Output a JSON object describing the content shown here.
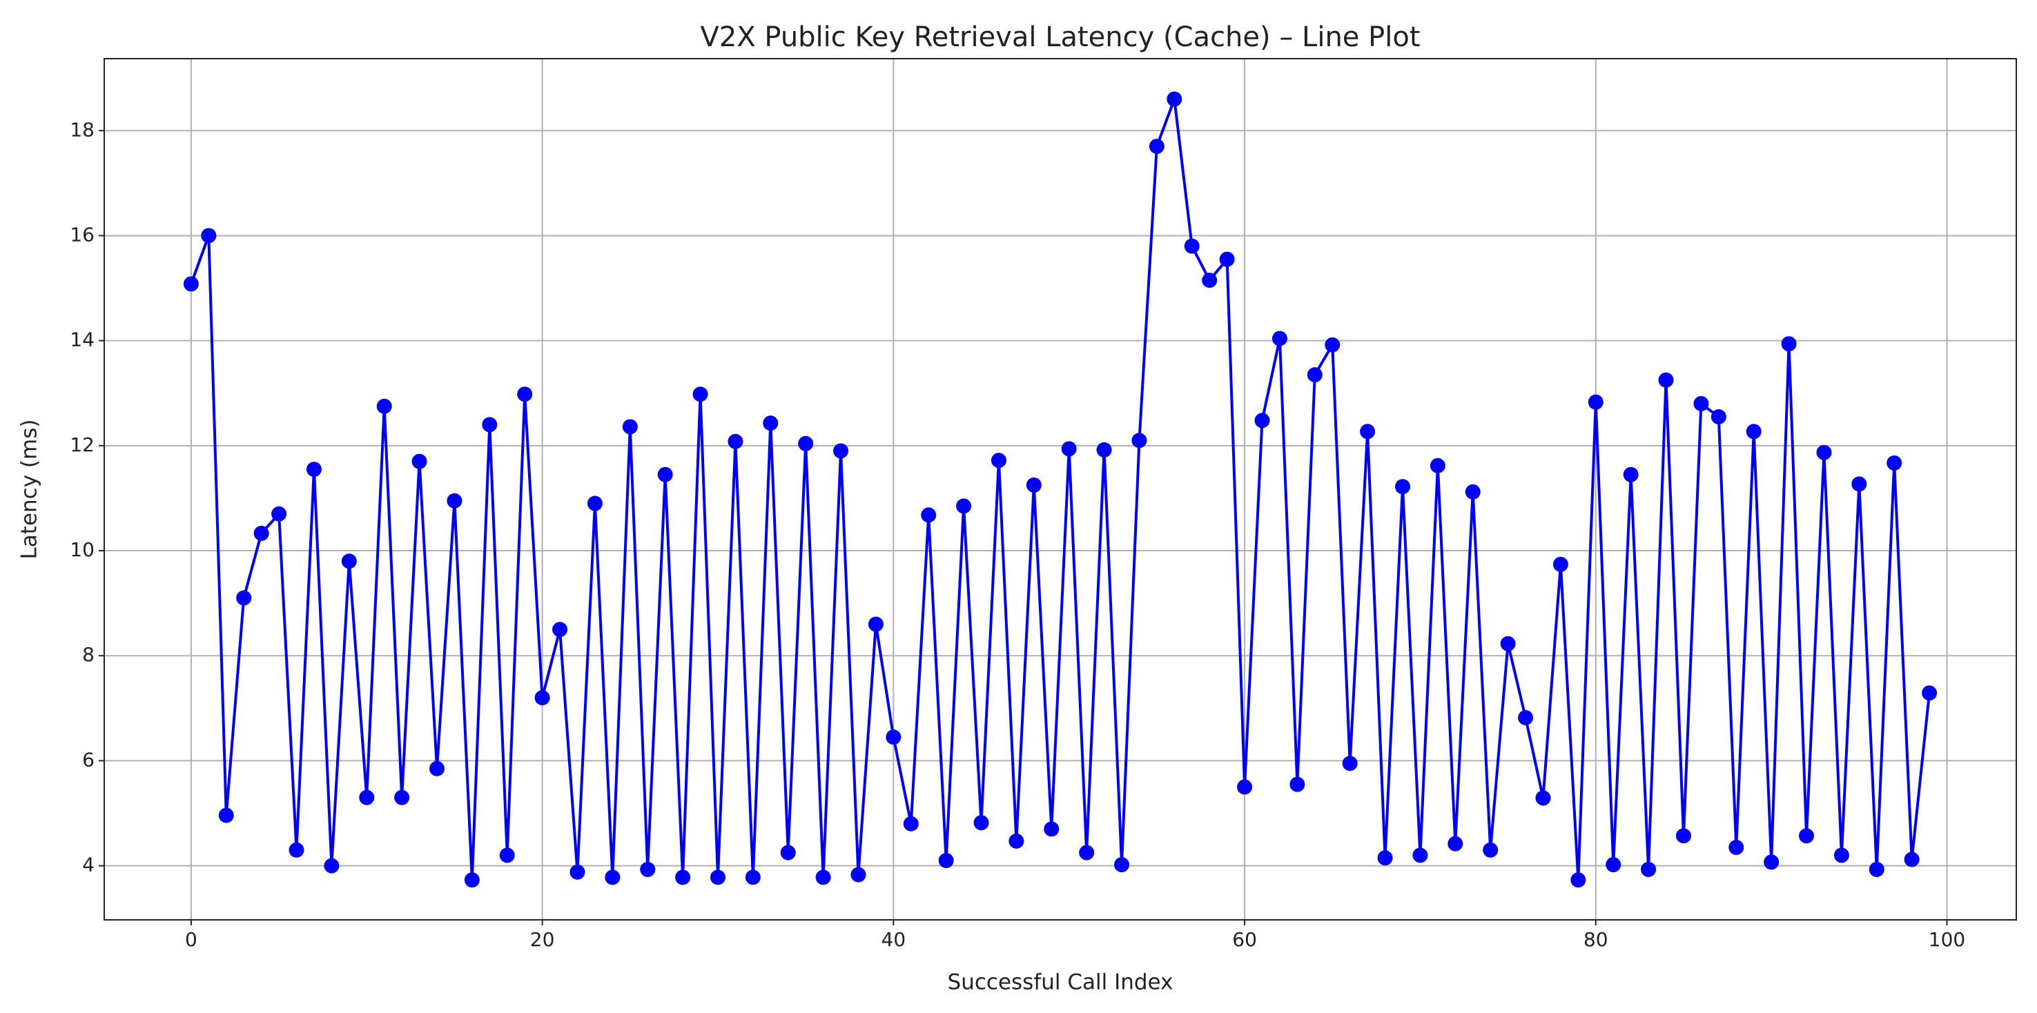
{
  "chart_data": {
    "type": "line",
    "title": "V2X Public Key Retrieval Latency (Cache) – Line Plot",
    "x_label": "Successful Call Index",
    "y_label": "Latency (ms)",
    "x": [
      0,
      1,
      2,
      3,
      4,
      5,
      6,
      7,
      8,
      9,
      10,
      11,
      12,
      13,
      14,
      15,
      16,
      17,
      18,
      19,
      20,
      21,
      22,
      23,
      24,
      25,
      26,
      27,
      28,
      29,
      30,
      31,
      32,
      33,
      34,
      35,
      36,
      37,
      38,
      39,
      40,
      41,
      42,
      43,
      44,
      45,
      46,
      47,
      48,
      49,
      50,
      51,
      52,
      53,
      54,
      55,
      56,
      57,
      58,
      59,
      60,
      61,
      62,
      63,
      64,
      65,
      66,
      67,
      68,
      69,
      70,
      71,
      72,
      73,
      74,
      75,
      76,
      77,
      78,
      79,
      80,
      81,
      82,
      83,
      84,
      85,
      86,
      87,
      88,
      89,
      90,
      91,
      92,
      93,
      94,
      95,
      96,
      97,
      98,
      99
    ],
    "series": [
      {
        "name": "Latency",
        "color": "#0000ff",
        "values": [
          15.08,
          16.0,
          4.96,
          9.1,
          10.33,
          10.7,
          4.3,
          11.55,
          4.0,
          9.8,
          5.3,
          12.75,
          5.3,
          11.7,
          5.85,
          10.95,
          3.73,
          12.4,
          4.2,
          12.98,
          7.2,
          8.5,
          3.88,
          10.9,
          3.78,
          12.36,
          3.93,
          11.45,
          3.78,
          12.98,
          3.78,
          12.08,
          3.78,
          12.43,
          4.25,
          12.04,
          3.78,
          11.9,
          3.83,
          8.6,
          6.45,
          4.8,
          10.68,
          4.1,
          10.85,
          4.82,
          11.72,
          4.47,
          11.25,
          4.7,
          11.94,
          4.25,
          11.92,
          4.02,
          12.1,
          17.7,
          18.6,
          15.8,
          15.15,
          15.55,
          5.5,
          12.48,
          14.04,
          5.55,
          13.35,
          13.92,
          5.95,
          12.27,
          4.15,
          11.22,
          4.2,
          11.62,
          4.42,
          11.12,
          4.3,
          8.23,
          6.82,
          5.29,
          9.74,
          3.73,
          12.83,
          4.02,
          11.45,
          3.93,
          13.25,
          4.57,
          12.8,
          12.55,
          4.35,
          12.27,
          4.07,
          13.94,
          4.57,
          11.87,
          4.2,
          11.27,
          3.93,
          11.67,
          4.12,
          7.29
        ]
      }
    ],
    "xlim": [
      -4.95,
      103.95
    ],
    "ylim": [
      2.97,
      19.37
    ],
    "xticks": [
      0,
      20,
      40,
      60,
      80,
      100
    ],
    "yticks": [
      4,
      6,
      8,
      10,
      12,
      14,
      16,
      18
    ],
    "grid": true
  }
}
